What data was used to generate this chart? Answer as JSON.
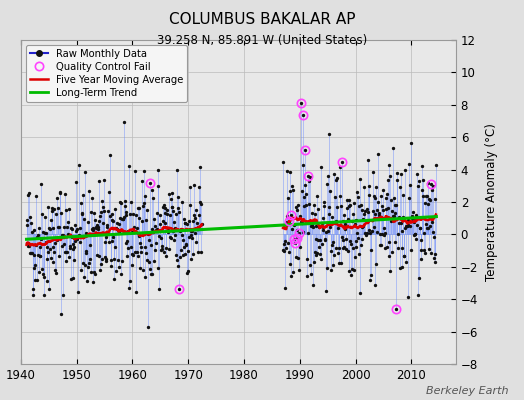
{
  "title": "COLUMBUS BAKALAR AP",
  "subtitle": "39.258 N, 85.891 W (United States)",
  "ylabel": "Temperature Anomaly (°C)",
  "xlabel_credit": "Berkeley Earth",
  "ylim": [
    -8,
    12
  ],
  "xlim": [
    1940,
    2018
  ],
  "xticks": [
    1940,
    1950,
    1960,
    1970,
    1980,
    1990,
    2000,
    2010
  ],
  "yticks": [
    -8,
    -6,
    -4,
    -2,
    0,
    2,
    4,
    6,
    8,
    10,
    12
  ],
  "bg_color": "#e0e0e0",
  "plot_bg_color": "#e8e8e8",
  "grid_color": "#bbbbbb",
  "raw_line_color": "#6688ff",
  "raw_line_alpha": 0.6,
  "raw_dot_color": "#111111",
  "qc_fail_color": "#ff44ff",
  "moving_avg_color": "#dd0000",
  "trend_color": "#00bb00",
  "seed": 42,
  "start_year": 1941.0,
  "gap_start": 1972.5,
  "gap_end": 1987.0,
  "end_year": 2014.5,
  "trend_x": [
    1941.0,
    2014.5
  ],
  "trend_y": [
    -0.3,
    1.1
  ],
  "noise_std": 1.8
}
